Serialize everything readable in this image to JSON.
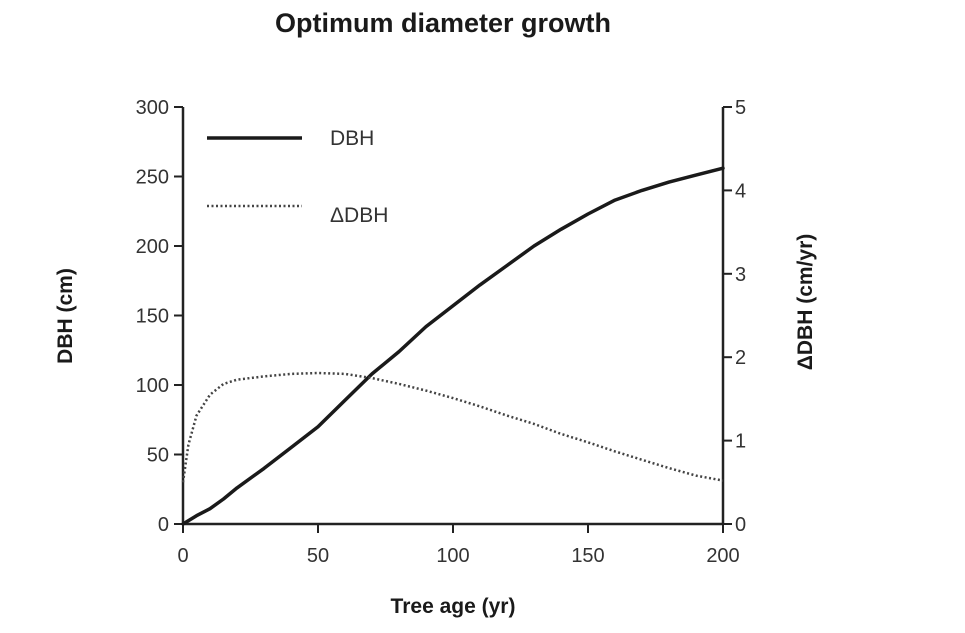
{
  "chart_data": {
    "type": "line",
    "title": "Optimum diameter growth",
    "xlabel": "Tree age (yr)",
    "ylabel_left": "DBH (cm)",
    "ylabel_right": "ΔDBH (cm/yr)",
    "xlim": [
      0,
      200
    ],
    "ylim_left": [
      0,
      300
    ],
    "ylim_right": [
      0,
      5
    ],
    "x_ticks": [
      0,
      50,
      100,
      150,
      200
    ],
    "y_left_ticks": [
      0,
      50,
      100,
      150,
      200,
      250,
      300
    ],
    "y_right_ticks": [
      0,
      1,
      2,
      3,
      4,
      5
    ],
    "grid": false,
    "legend_position": "top-left",
    "series": [
      {
        "name": "DBH",
        "axis": "left",
        "style": "solid",
        "color": "#1a1a1a",
        "x": [
          0,
          5,
          10,
          15,
          20,
          30,
          40,
          50,
          60,
          70,
          80,
          90,
          100,
          110,
          120,
          130,
          140,
          150,
          160,
          170,
          180,
          190,
          200
        ],
        "y": [
          0,
          6,
          11,
          18,
          26,
          40,
          55,
          70,
          89,
          108,
          124,
          142,
          157,
          172,
          186,
          200,
          212,
          223,
          233,
          240,
          246,
          251,
          256
        ]
      },
      {
        "name": "ΔDBH",
        "axis": "right",
        "style": "dotted",
        "color": "#444444",
        "x": [
          0,
          2,
          5,
          10,
          15,
          20,
          30,
          40,
          50,
          60,
          70,
          80,
          90,
          100,
          110,
          120,
          130,
          140,
          150,
          160,
          170,
          180,
          190,
          200
        ],
        "y": [
          0.5,
          0.95,
          1.3,
          1.55,
          1.68,
          1.73,
          1.77,
          1.8,
          1.81,
          1.8,
          1.75,
          1.68,
          1.6,
          1.51,
          1.41,
          1.3,
          1.2,
          1.08,
          0.98,
          0.87,
          0.77,
          0.67,
          0.58,
          0.52
        ]
      }
    ]
  }
}
